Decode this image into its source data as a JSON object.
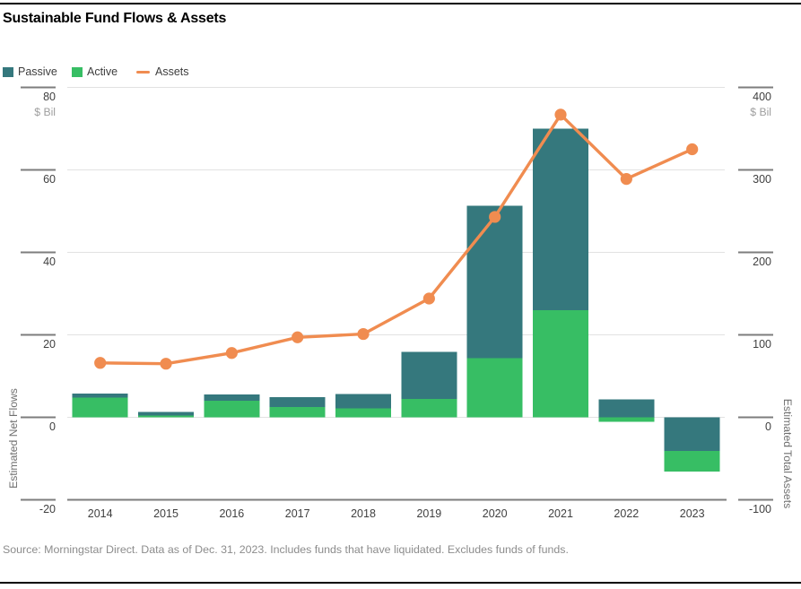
{
  "title": "Sustainable Fund Flows & Assets",
  "legend": {
    "passive_label": "Passive",
    "active_label": "Active",
    "assets_label": "Assets"
  },
  "axes": {
    "left": {
      "unit": "$ Bil",
      "title": "Estimated Net Flows",
      "ticks": [
        80,
        60,
        40,
        20,
        0,
        -20
      ],
      "range": [
        -20,
        80
      ]
    },
    "right": {
      "unit": "$ Bil",
      "title": "Estimated Total Assets",
      "ticks": [
        400,
        300,
        200,
        100,
        0,
        -100
      ],
      "range": [
        -100,
        400
      ]
    }
  },
  "footer": "Source: Morningstar Direct. Data as of Dec. 31, 2023. Includes funds that have liquidated. Excludes funds of funds.",
  "chart_data": {
    "type": "bar",
    "subtype": "stacked-bars-with-overlay-line",
    "title": "Sustainable Fund Flows & Assets",
    "categories": [
      "2014",
      "2015",
      "2016",
      "2017",
      "2018",
      "2019",
      "2020",
      "2021",
      "2022",
      "2023"
    ],
    "series": [
      {
        "name": "Passive",
        "type": "bar",
        "axis": "left",
        "color": "#35787D",
        "values": [
          1.0,
          0.9,
          1.5,
          2.4,
          3.4,
          11.4,
          37.0,
          44.0,
          4.3,
          -8.2
        ]
      },
      {
        "name": "Active",
        "type": "bar",
        "axis": "left",
        "color": "#37BE64",
        "values": [
          4.8,
          0.4,
          4.0,
          2.5,
          2.2,
          4.5,
          14.3,
          26.0,
          -1.1,
          -5.0
        ]
      },
      {
        "name": "Assets",
        "type": "line",
        "axis": "right",
        "color": "#F08C50",
        "values": [
          66,
          65,
          78,
          97,
          101,
          144,
          243,
          367,
          289,
          325
        ]
      }
    ],
    "ylabel_left": "Estimated Net Flows ($ Bil)",
    "ylabel_right": "Estimated Total Assets ($ Bil)",
    "ylim_left": [
      -20,
      80
    ],
    "ylim_right": [
      -100,
      400
    ],
    "grid": true,
    "legend_position": "top-left"
  },
  "colors": {
    "grid": "#E2E2E2",
    "axis": "#7D7D7D",
    "tick_text": "#404040",
    "unit_text": "#9E9E9E",
    "axis_title_text": "#6F6F6F",
    "footer_text": "#8C8C8C",
    "passive": "#35787D",
    "active": "#37BE64",
    "assets": "#F08C50"
  }
}
